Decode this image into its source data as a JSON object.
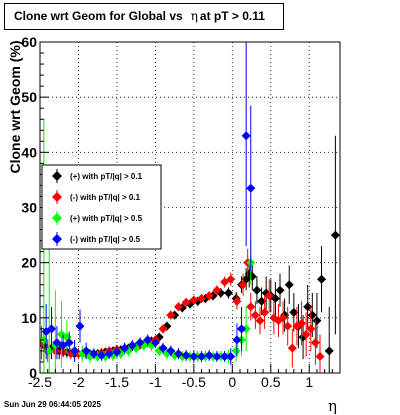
{
  "title": {
    "prefix": "Clone wrt Geom for Global vs",
    "eta": "η",
    "suffix": "at pT > 0.11"
  },
  "timestamp": "Sun Jun 29 06:44:05 2025",
  "chart_data": {
    "type": "scatter",
    "ylabel": "Clone wrt Geom (%)",
    "xlabel": "η",
    "xlim": [
      -2.5,
      1.4
    ],
    "ylim": [
      0,
      60
    ],
    "grid": true,
    "legend_position": "left-middle",
    "x_ticks": [
      "-2.5",
      "-2",
      "-1.5",
      "-1",
      "-0.5",
      "0",
      "0.5",
      "1"
    ],
    "y_ticks": [
      "0",
      "10",
      "20",
      "30",
      "40",
      "50",
      "60"
    ],
    "series": [
      {
        "name": "(+) with pT/|q| > 0.1",
        "color": "#000000",
        "points": [
          [
            -2.45,
            5,
            3
          ],
          [
            -2.35,
            4.5,
            2
          ],
          [
            -2.25,
            4,
            1.5
          ],
          [
            -2.15,
            3.8,
            1
          ],
          [
            -2.05,
            3.5,
            1
          ],
          [
            -1.95,
            3.5,
            1
          ],
          [
            -1.85,
            3.5,
            0.8
          ],
          [
            -1.75,
            3.5,
            0.8
          ],
          [
            -1.65,
            3.8,
            0.8
          ],
          [
            -1.55,
            4,
            0.8
          ],
          [
            -1.45,
            4.2,
            0.8
          ],
          [
            -1.35,
            4.5,
            0.8
          ],
          [
            -1.25,
            4.8,
            0.8
          ],
          [
            -1.15,
            5.2,
            0.8
          ],
          [
            -1.05,
            5.8,
            0.8
          ],
          [
            -0.95,
            6.5,
            0.8
          ],
          [
            -0.85,
            8.5,
            0.8
          ],
          [
            -0.75,
            10.5,
            0.8
          ],
          [
            -0.65,
            11.8,
            0.8
          ],
          [
            -0.55,
            12.5,
            0.8
          ],
          [
            -0.45,
            13,
            0.8
          ],
          [
            -0.35,
            13.5,
            0.8
          ],
          [
            -0.25,
            14,
            0.8
          ],
          [
            -0.15,
            14.5,
            0.9
          ],
          [
            -0.05,
            14.5,
            1
          ],
          [
            0.05,
            13.5,
            1.2
          ],
          [
            0.12,
            16,
            1.5
          ],
          [
            0.18,
            17,
            2
          ],
          [
            0.22,
            18,
            2.5
          ],
          [
            0.26,
            17.5,
            2.5
          ],
          [
            0.32,
            15,
            2.5
          ],
          [
            0.38,
            13,
            2.5
          ],
          [
            0.44,
            14.5,
            3
          ],
          [
            0.5,
            14,
            3
          ],
          [
            0.56,
            13.5,
            3
          ],
          [
            0.62,
            15,
            3
          ],
          [
            0.68,
            10.5,
            3
          ],
          [
            0.74,
            16,
            3.5
          ],
          [
            0.8,
            11,
            3.5
          ],
          [
            0.86,
            8.5,
            4
          ],
          [
            0.92,
            6.5,
            4
          ],
          [
            0.98,
            12,
            4
          ],
          [
            1.04,
            10.5,
            4
          ],
          [
            1.1,
            9.5,
            5
          ],
          [
            1.16,
            17,
            6
          ],
          [
            1.26,
            4,
            8
          ],
          [
            1.34,
            25,
            18
          ]
        ]
      },
      {
        "name": "(-) with pT/|q| > 0.1",
        "color": "#ff0000",
        "points": [
          [
            -2.48,
            5.5,
            3
          ],
          [
            -2.4,
            4,
            2
          ],
          [
            -2.3,
            4,
            1.5
          ],
          [
            -2.2,
            3.8,
            1
          ],
          [
            -2.1,
            3.5,
            1
          ],
          [
            -2.0,
            3.5,
            1
          ],
          [
            -1.9,
            3.5,
            0.8
          ],
          [
            -1.8,
            3.5,
            0.8
          ],
          [
            -1.7,
            3.7,
            0.8
          ],
          [
            -1.6,
            4,
            0.8
          ],
          [
            -1.5,
            4.3,
            0.8
          ],
          [
            -1.4,
            4.5,
            0.8
          ],
          [
            -1.3,
            4.8,
            0.8
          ],
          [
            -1.2,
            5,
            0.8
          ],
          [
            -1.1,
            5.5,
            0.8
          ],
          [
            -1.0,
            6,
            0.8
          ],
          [
            -0.9,
            8,
            0.8
          ],
          [
            -0.8,
            10.5,
            0.8
          ],
          [
            -0.7,
            12,
            0.8
          ],
          [
            -0.6,
            12.8,
            0.8
          ],
          [
            -0.5,
            13.2,
            0.8
          ],
          [
            -0.4,
            13.5,
            0.8
          ],
          [
            -0.3,
            14,
            0.8
          ],
          [
            -0.2,
            15,
            0.9
          ],
          [
            -0.1,
            16.5,
            1
          ],
          [
            -0.02,
            17,
            1.2
          ],
          [
            0.06,
            13,
            1.5
          ],
          [
            0.14,
            16,
            2
          ],
          [
            0.2,
            20,
            2.5
          ],
          [
            0.24,
            12,
            2.5
          ],
          [
            0.3,
            10.5,
            2.5
          ],
          [
            0.36,
            9.5,
            2.5
          ],
          [
            0.42,
            11,
            3
          ],
          [
            0.48,
            14,
            3
          ],
          [
            0.54,
            10,
            3
          ],
          [
            0.6,
            9.5,
            3
          ],
          [
            0.66,
            10,
            3
          ],
          [
            0.72,
            8.5,
            3.5
          ],
          [
            0.78,
            4.5,
            3.5
          ],
          [
            0.84,
            8.5,
            3.5
          ],
          [
            0.9,
            9,
            4
          ],
          [
            0.96,
            7,
            4
          ],
          [
            1.02,
            8,
            4
          ],
          [
            1.08,
            5.5,
            4
          ],
          [
            1.14,
            3,
            4
          ]
        ]
      },
      {
        "name": "(+) with pT/|q| > 0.5",
        "color": "#00ff00",
        "points": [
          [
            -2.45,
            6,
            40
          ],
          [
            -2.38,
            4,
            20
          ],
          [
            -2.3,
            5,
            10
          ],
          [
            -2.22,
            7,
            6
          ],
          [
            -2.15,
            6.5,
            3
          ],
          [
            -2.05,
            4,
            2
          ],
          [
            -1.95,
            3.5,
            1.5
          ],
          [
            -1.85,
            3,
            1.2
          ],
          [
            -1.75,
            3,
            1
          ],
          [
            -1.65,
            3,
            1
          ],
          [
            -1.55,
            3.2,
            1
          ],
          [
            -1.45,
            3.5,
            1
          ],
          [
            -1.35,
            4,
            1
          ],
          [
            -1.25,
            4.5,
            1
          ],
          [
            -1.15,
            5,
            1
          ],
          [
            -1.05,
            5,
            1
          ],
          [
            -0.95,
            4,
            1
          ],
          [
            -0.85,
            3.5,
            1
          ],
          [
            -0.75,
            3.2,
            1
          ],
          [
            -0.65,
            3,
            1
          ],
          [
            -0.55,
            3,
            1
          ],
          [
            -0.45,
            3,
            1
          ],
          [
            -0.35,
            3,
            1
          ],
          [
            -0.25,
            3,
            1
          ],
          [
            -0.15,
            3,
            1
          ],
          [
            -0.05,
            3,
            1.2
          ],
          [
            0.05,
            4,
            2
          ],
          [
            0.12,
            6,
            3
          ],
          [
            0.18,
            8,
            4
          ],
          [
            0.24,
            20,
            4
          ]
        ]
      },
      {
        "name": "(-) with pT/|q| > 0.5",
        "color": "#0000ff",
        "points": [
          [
            -2.42,
            7.5,
            5
          ],
          [
            -2.35,
            8,
            4
          ],
          [
            -2.28,
            5.5,
            3
          ],
          [
            -2.2,
            5,
            2
          ],
          [
            -2.12,
            5.5,
            2
          ],
          [
            -2.05,
            4,
            2
          ],
          [
            -1.98,
            8.5,
            3
          ],
          [
            -1.9,
            4,
            1.5
          ],
          [
            -1.8,
            3.5,
            1
          ],
          [
            -1.7,
            3.2,
            1
          ],
          [
            -1.6,
            3.5,
            1
          ],
          [
            -1.5,
            3.8,
            1
          ],
          [
            -1.4,
            4.5,
            1
          ],
          [
            -1.3,
            5,
            1
          ],
          [
            -1.2,
            5.5,
            1
          ],
          [
            -1.1,
            6,
            1
          ],
          [
            -1.0,
            5.5,
            1
          ],
          [
            -0.9,
            4.5,
            1
          ],
          [
            -0.8,
            4,
            1
          ],
          [
            -0.7,
            3.5,
            1
          ],
          [
            -0.6,
            3.2,
            1
          ],
          [
            -0.5,
            3,
            1
          ],
          [
            -0.4,
            3,
            1
          ],
          [
            -0.3,
            3.2,
            1
          ],
          [
            -0.2,
            3,
            1
          ],
          [
            -0.1,
            3,
            1
          ],
          [
            -0.02,
            3,
            1.5
          ],
          [
            0.06,
            6,
            3
          ],
          [
            0.12,
            8,
            4
          ],
          [
            0.18,
            43,
            20
          ],
          [
            0.24,
            33.5,
            15
          ]
        ]
      }
    ]
  }
}
